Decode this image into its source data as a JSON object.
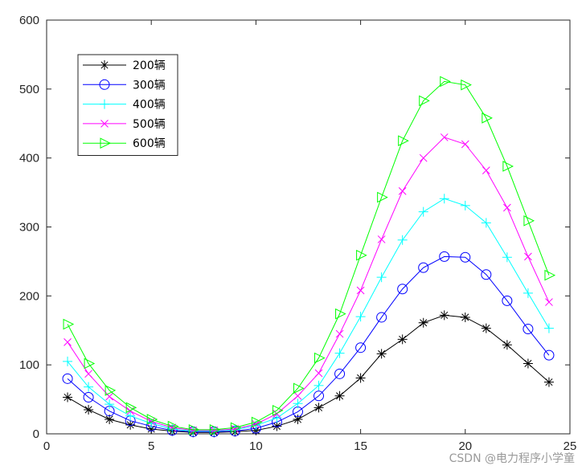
{
  "chart_data": {
    "type": "line",
    "title": "",
    "xlabel": "",
    "ylabel": "",
    "xlim": [
      0,
      25
    ],
    "ylim": [
      0,
      600
    ],
    "xticks": [
      0,
      5,
      10,
      15,
      20,
      25
    ],
    "yticks": [
      0,
      100,
      200,
      300,
      400,
      500,
      600
    ],
    "grid": false,
    "legend_position": "top-left",
    "x": [
      1,
      2,
      3,
      4,
      5,
      6,
      7,
      8,
      9,
      10,
      11,
      12,
      13,
      14,
      15,
      16,
      17,
      18,
      19,
      20,
      21,
      22,
      23,
      24
    ],
    "series": [
      {
        "name": "200辆",
        "color": "#000000",
        "marker": "asterisk",
        "values": [
          53,
          35,
          21,
          13,
          7,
          4,
          2,
          2,
          3,
          5,
          11,
          21,
          38,
          55,
          81,
          116,
          137,
          161,
          172,
          169,
          153,
          129,
          102,
          75
        ]
      },
      {
        "name": "300辆",
        "color": "#0000ff",
        "marker": "circle",
        "values": [
          80,
          53,
          33,
          19,
          11,
          5,
          3,
          3,
          4,
          8,
          17,
          32,
          55,
          87,
          125,
          169,
          210,
          241,
          257,
          256,
          231,
          193,
          152,
          114
        ]
      },
      {
        "name": "400辆",
        "color": "#00ffff",
        "marker": "plus",
        "values": [
          105,
          68,
          43,
          26,
          15,
          7,
          4,
          4,
          6,
          12,
          23,
          44,
          70,
          117,
          170,
          227,
          281,
          322,
          341,
          331,
          306,
          256,
          204,
          153
        ]
      },
      {
        "name": "500辆",
        "color": "#ff00ff",
        "marker": "cross",
        "values": [
          133,
          87,
          54,
          33,
          18,
          9,
          5,
          5,
          7,
          14,
          29,
          55,
          88,
          145,
          208,
          282,
          352,
          400,
          430,
          420,
          382,
          328,
          257,
          191
        ]
      },
      {
        "name": "600辆",
        "color": "#00ff00",
        "marker": "triangle-right",
        "values": [
          159,
          102,
          63,
          38,
          21,
          11,
          6,
          6,
          9,
          17,
          34,
          66,
          110,
          174,
          259,
          343,
          425,
          483,
          511,
          506,
          458,
          388,
          309,
          230
        ]
      }
    ]
  },
  "watermark": "CSDN @电力程序小学童"
}
